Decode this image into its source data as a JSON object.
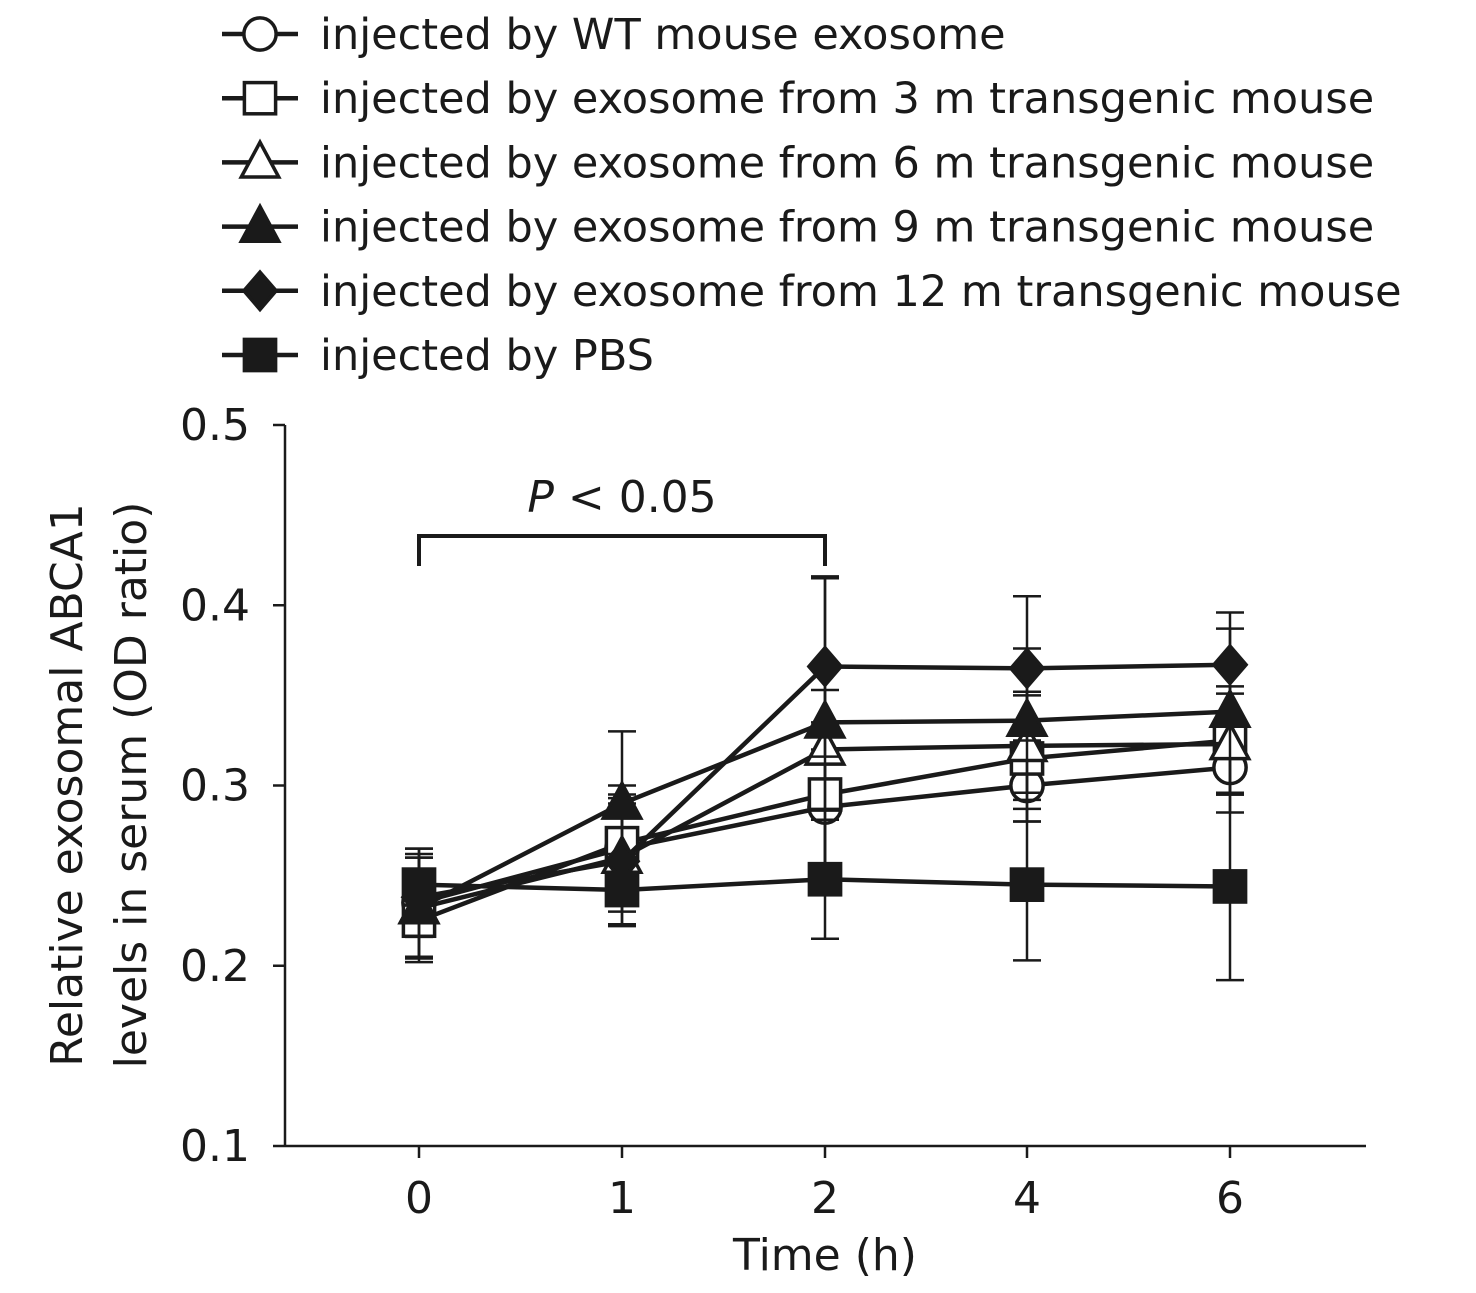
{
  "chart_data": {
    "type": "line",
    "title": "",
    "xlabel": "Time (h)",
    "ylabel_lines": [
      "Relative exosomal ABCA1",
      "levels in serum (OD ratio)"
    ],
    "x": [
      "0",
      "1",
      "2",
      "4",
      "6"
    ],
    "ylim": [
      0.1,
      0.5
    ],
    "yticks": [
      "0.1",
      "0.2",
      "0.3",
      "0.4",
      "0.5"
    ],
    "grid": false,
    "legend_position": "top",
    "series": [
      {
        "name": "injected by WT mouse exosome",
        "marker": "circle-open",
        "values": [
          0.235,
          0.265,
          0.288,
          0.3,
          0.31
        ],
        "errors": [
          0.03,
          0.03,
          0.032,
          0.02,
          0.025
        ]
      },
      {
        "name": "injected by exosome from 3 m transgenic mouse",
        "marker": "square-open",
        "values": [
          0.225,
          0.268,
          0.295,
          0.315,
          0.325
        ],
        "errors": [
          0.02,
          0.032,
          0.04,
          0.035,
          0.03
        ]
      },
      {
        "name": "injected by exosome from 6 m transgenic mouse",
        "marker": "triangle-open",
        "values": [
          0.232,
          0.26,
          0.32,
          0.322,
          0.323
        ],
        "errors": [
          0.028,
          0.03,
          0.033,
          0.03,
          0.028
        ]
      },
      {
        "name": "injected by exosome from 9 m transgenic mouse",
        "marker": "triangle-filled",
        "values": [
          0.232,
          0.29,
          0.335,
          0.336,
          0.341
        ],
        "errors": [
          0.03,
          0.04,
          0.08,
          0.04,
          0.046
        ]
      },
      {
        "name": "injected by exosome from 12 m transgenic mouse",
        "marker": "diamond-filled",
        "values": [
          0.238,
          0.258,
          0.366,
          0.365,
          0.367
        ],
        "errors": [
          0.022,
          0.035,
          0.05,
          0.04,
          0.029
        ]
      },
      {
        "name": "injected by PBS",
        "marker": "square-filled",
        "values": [
          0.245,
          0.242,
          0.248,
          0.245,
          0.244
        ],
        "errors": [
          0.02,
          0.02,
          0.033,
          0.042,
          0.052
        ]
      }
    ],
    "annotation": {
      "text_italic": "P",
      "text_rest": " < 0.05",
      "from_x_index": 0,
      "to_x_index": 2
    }
  }
}
